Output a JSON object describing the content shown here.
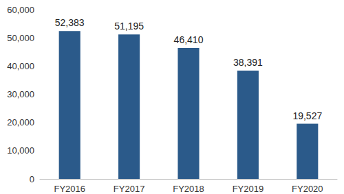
{
  "chart_data": {
    "type": "bar",
    "categories": [
      "FY2016",
      "FY2017",
      "FY2018",
      "FY2019",
      "FY2020"
    ],
    "values": [
      52383,
      51195,
      46410,
      38391,
      19527
    ],
    "value_labels": [
      "52,383",
      "51,195",
      "46,410",
      "38,391",
      "19,527"
    ],
    "color": "#2b5a8a",
    "ylim": [
      0,
      60000
    ],
    "yticks": [
      0,
      {
        "value": 10000,
        "label": "10,000"
      },
      {
        "value": 20000,
        "label": "20,000"
      },
      {
        "value": 30000,
        "label": "30,000"
      },
      {
        "value": 40000,
        "label": "40,000"
      },
      {
        "value": 50000,
        "label": "50,000"
      },
      {
        "value": 60000,
        "label": "60,000"
      }
    ],
    "grid": false,
    "data_labels": true
  }
}
